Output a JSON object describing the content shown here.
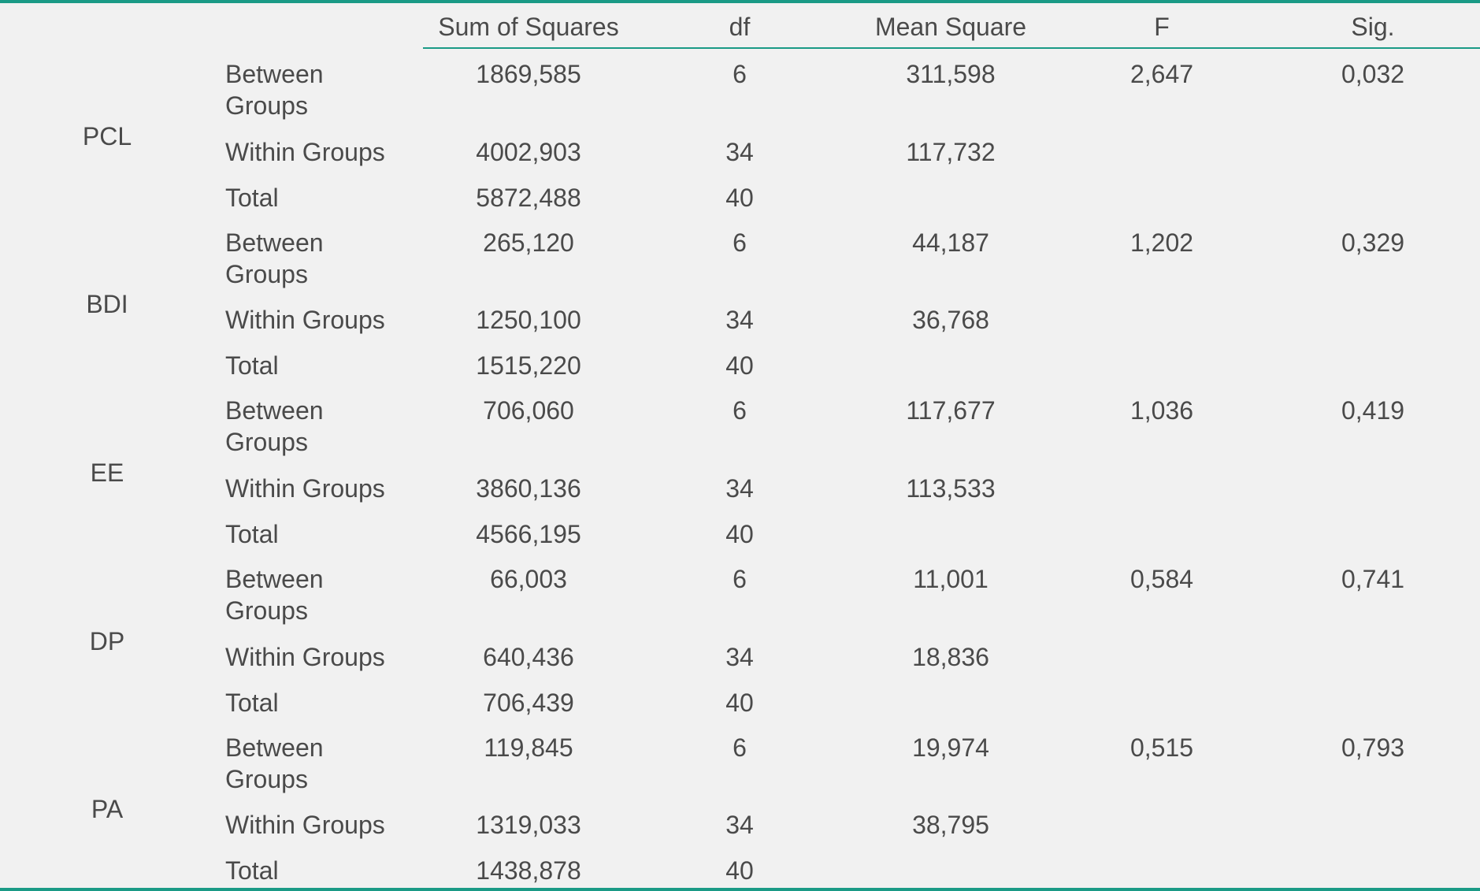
{
  "header": {
    "sum_of_squares": "Sum of Squares",
    "df": "df",
    "mean_square": "Mean Square",
    "f": "F",
    "sig": "Sig."
  },
  "groups": [
    {
      "name": "PCL",
      "rows": [
        {
          "source": "Between Groups",
          "ss": "1869,585",
          "df": "6",
          "ms": "311,598",
          "f": "2,647",
          "sig": "0,032"
        },
        {
          "source": "Within Groups",
          "ss": "4002,903",
          "df": "34",
          "ms": "117,732",
          "f": "",
          "sig": ""
        },
        {
          "source": "Total",
          "ss": "5872,488",
          "df": "40",
          "ms": "",
          "f": "",
          "sig": ""
        }
      ]
    },
    {
      "name": "BDI",
      "rows": [
        {
          "source": "Between Groups",
          "ss": "265,120",
          "df": "6",
          "ms": "44,187",
          "f": "1,202",
          "sig": "0,329"
        },
        {
          "source": "Within Groups",
          "ss": "1250,100",
          "df": "34",
          "ms": "36,768",
          "f": "",
          "sig": ""
        },
        {
          "source": "Total",
          "ss": "1515,220",
          "df": "40",
          "ms": "",
          "f": "",
          "sig": ""
        }
      ]
    },
    {
      "name": "EE",
      "rows": [
        {
          "source": "Between Groups",
          "ss": "706,060",
          "df": "6",
          "ms": "117,677",
          "f": "1,036",
          "sig": "0,419"
        },
        {
          "source": "Within Groups",
          "ss": "3860,136",
          "df": "34",
          "ms": "113,533",
          "f": "",
          "sig": ""
        },
        {
          "source": "Total",
          "ss": "4566,195",
          "df": "40",
          "ms": "",
          "f": "",
          "sig": ""
        }
      ]
    },
    {
      "name": "DP",
      "rows": [
        {
          "source": "Between Groups",
          "ss": "66,003",
          "df": "6",
          "ms": "11,001",
          "f": "0,584",
          "sig": "0,741"
        },
        {
          "source": "Within Groups",
          "ss": "640,436",
          "df": "34",
          "ms": "18,836",
          "f": "",
          "sig": ""
        },
        {
          "source": "Total",
          "ss": "706,439",
          "df": "40",
          "ms": "",
          "f": "",
          "sig": ""
        }
      ]
    },
    {
      "name": "PA",
      "rows": [
        {
          "source": "Between Groups",
          "ss": "119,845",
          "df": "6",
          "ms": "19,974",
          "f": "0,515",
          "sig": "0,793"
        },
        {
          "source": "Within Groups",
          "ss": "1319,033",
          "df": "34",
          "ms": "38,795",
          "f": "",
          "sig": ""
        },
        {
          "source": "Total",
          "ss": "1438,878",
          "df": "40",
          "ms": "",
          "f": "",
          "sig": ""
        }
      ]
    }
  ]
}
